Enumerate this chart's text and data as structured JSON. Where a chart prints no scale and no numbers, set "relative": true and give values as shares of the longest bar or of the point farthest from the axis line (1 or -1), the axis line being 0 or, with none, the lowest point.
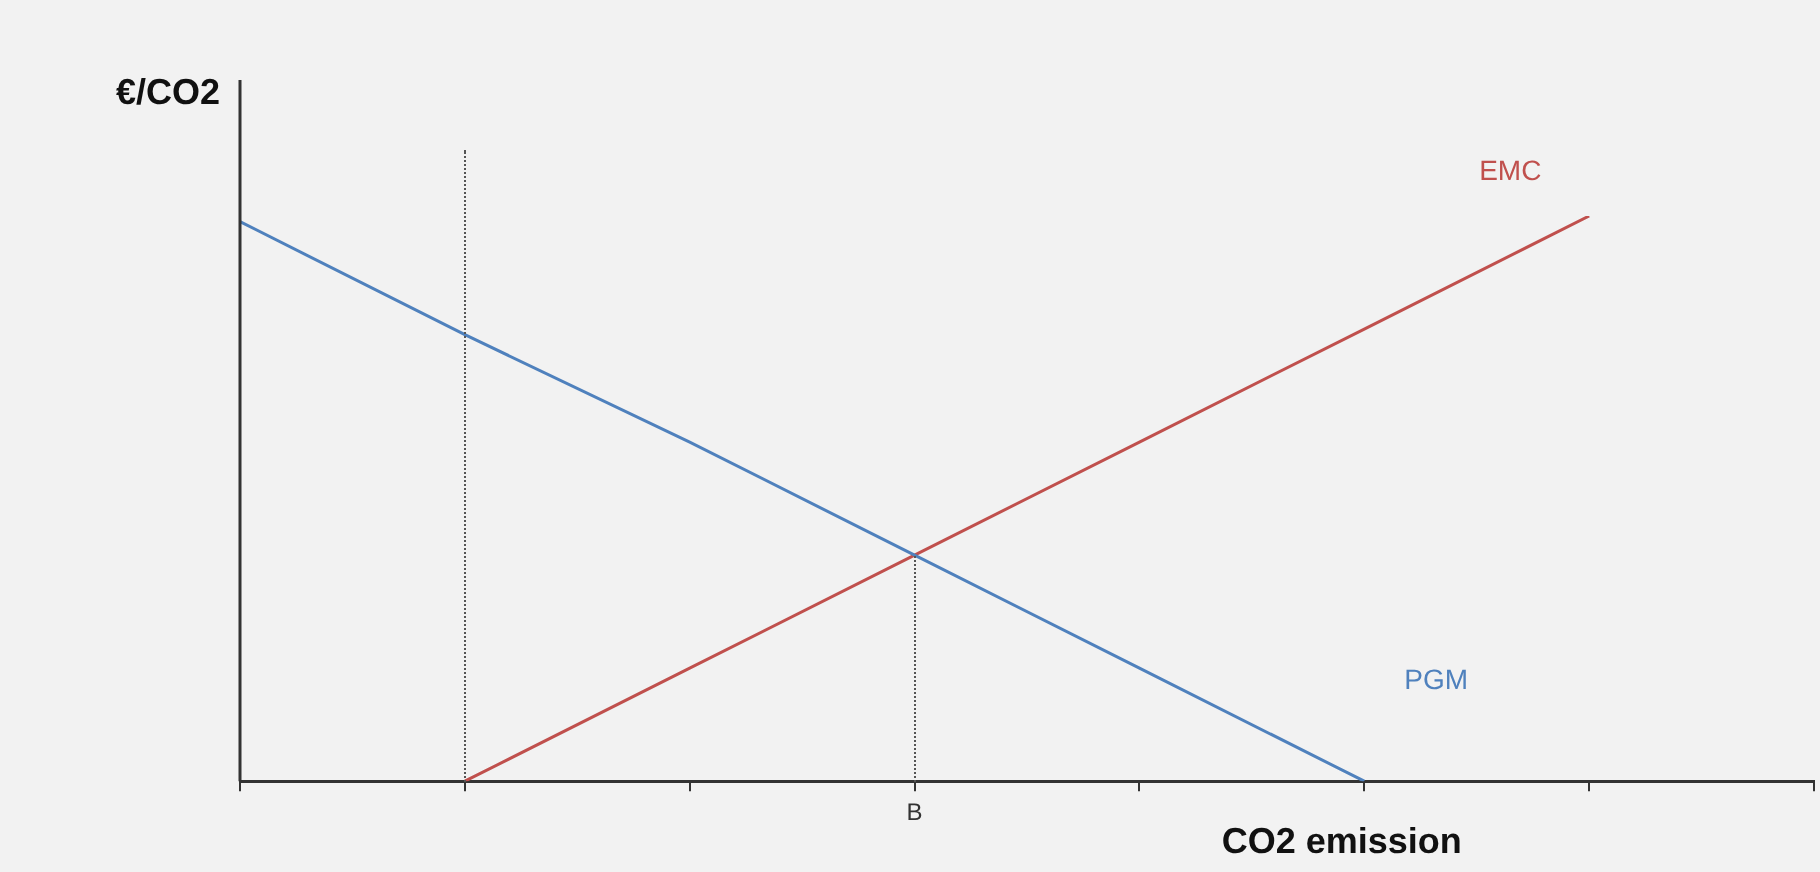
{
  "chart_data": {
    "type": "line",
    "relative": true,
    "xlabel": "CO2 emission",
    "ylabel": "€/CO2",
    "categories": [
      null,
      null,
      null,
      null,
      null,
      null,
      null,
      null
    ],
    "annotations": [
      "B"
    ],
    "series": [
      {
        "name": "PGM",
        "color": "#4f81bd",
        "values": [
          0.99,
          0.79,
          0.6,
          0.4,
          0.2,
          0,
          null,
          null
        ]
      },
      {
        "name": "EMC",
        "color": "#c0504d",
        "values": [
          null,
          0,
          0.2,
          0.4,
          0.6,
          0.8,
          1,
          null
        ]
      }
    ],
    "marker": "none",
    "line_style": "solid",
    "grid": false,
    "legend": false
  }
}
